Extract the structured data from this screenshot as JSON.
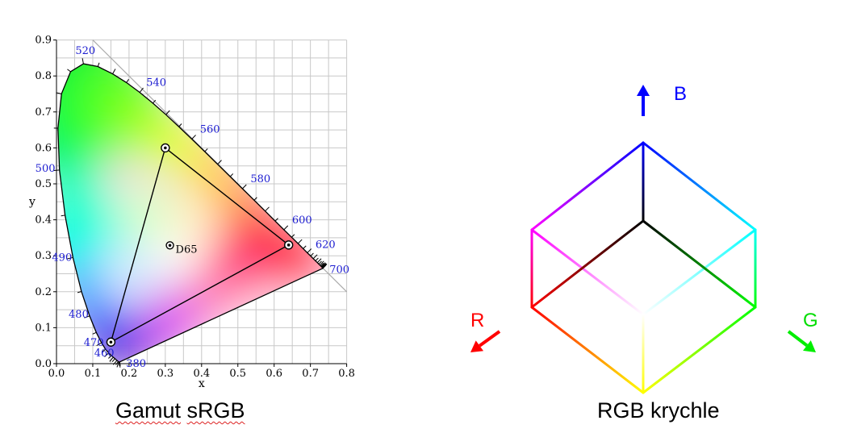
{
  "chromaticity_diagram": {
    "x_axis_label": "x",
    "y_axis_label": "y",
    "x_ticks": [
      "0.0",
      "0.1",
      "0.2",
      "0.3",
      "0.4",
      "0.5",
      "0.6",
      "0.7",
      "0.8"
    ],
    "y_ticks": [
      "0.0",
      "0.1",
      "0.2",
      "0.3",
      "0.4",
      "0.5",
      "0.6",
      "0.7",
      "0.8",
      "0.9"
    ],
    "wavelength_labels": [
      {
        "nm": "380",
        "x": 0.1741,
        "y": 0.005
      },
      {
        "nm": "460",
        "x": 0.144,
        "y": 0.0297
      },
      {
        "nm": "470",
        "x": 0.1241,
        "y": 0.0578
      },
      {
        "nm": "480",
        "x": 0.0913,
        "y": 0.1327
      },
      {
        "nm": "490",
        "x": 0.0454,
        "y": 0.295
      },
      {
        "nm": "500",
        "x": 0.0082,
        "y": 0.5384
      },
      {
        "nm": "520",
        "x": 0.0743,
        "y": 0.8338
      },
      {
        "nm": "540",
        "x": 0.2296,
        "y": 0.7543
      },
      {
        "nm": "560",
        "x": 0.3731,
        "y": 0.6245
      },
      {
        "nm": "580",
        "x": 0.5125,
        "y": 0.4866
      },
      {
        "nm": "600",
        "x": 0.627,
        "y": 0.3725
      },
      {
        "nm": "620",
        "x": 0.6915,
        "y": 0.3083
      },
      {
        "nm": "700",
        "x": 0.7347,
        "y": 0.2653
      }
    ],
    "spectral_locus": [
      [
        0.1741,
        0.005
      ],
      [
        0.1738,
        0.0049
      ],
      [
        0.1736,
        0.0049
      ],
      [
        0.173,
        0.0048
      ],
      [
        0.1721,
        0.0048
      ],
      [
        0.1703,
        0.0058
      ],
      [
        0.1666,
        0.0089
      ],
      [
        0.1611,
        0.0138
      ],
      [
        0.1566,
        0.0177
      ],
      [
        0.151,
        0.0227
      ],
      [
        0.144,
        0.0297
      ],
      [
        0.1355,
        0.0399
      ],
      [
        0.1241,
        0.0578
      ],
      [
        0.1096,
        0.0868
      ],
      [
        0.0913,
        0.1327
      ],
      [
        0.0687,
        0.2007
      ],
      [
        0.0454,
        0.295
      ],
      [
        0.0235,
        0.4127
      ],
      [
        0.0082,
        0.5384
      ],
      [
        0.0039,
        0.6548
      ],
      [
        0.0139,
        0.7502
      ],
      [
        0.0389,
        0.812
      ],
      [
        0.0743,
        0.8338
      ],
      [
        0.1142,
        0.8262
      ],
      [
        0.1547,
        0.8059
      ],
      [
        0.1929,
        0.7816
      ],
      [
        0.2296,
        0.7543
      ],
      [
        0.2658,
        0.7243
      ],
      [
        0.3016,
        0.6923
      ],
      [
        0.3373,
        0.6589
      ],
      [
        0.3731,
        0.6245
      ],
      [
        0.4087,
        0.5896
      ],
      [
        0.4441,
        0.5547
      ],
      [
        0.4788,
        0.5202
      ],
      [
        0.5125,
        0.4866
      ],
      [
        0.5448,
        0.4544
      ],
      [
        0.5752,
        0.4242
      ],
      [
        0.6029,
        0.3965
      ],
      [
        0.627,
        0.3725
      ],
      [
        0.6482,
        0.3514
      ],
      [
        0.6658,
        0.334
      ],
      [
        0.6801,
        0.3197
      ],
      [
        0.6915,
        0.3083
      ],
      [
        0.7006,
        0.2993
      ],
      [
        0.7079,
        0.292
      ],
      [
        0.714,
        0.2859
      ],
      [
        0.719,
        0.2809
      ],
      [
        0.723,
        0.277
      ],
      [
        0.726,
        0.274
      ],
      [
        0.7283,
        0.2717
      ],
      [
        0.73,
        0.27
      ],
      [
        0.7311,
        0.2689
      ],
      [
        0.732,
        0.268
      ],
      [
        0.7327,
        0.2673
      ],
      [
        0.7334,
        0.2666
      ],
      [
        0.734,
        0.266
      ],
      [
        0.7344,
        0.2656
      ],
      [
        0.7346,
        0.2654
      ],
      [
        0.7347,
        0.2653
      ]
    ],
    "gamut_red": [
      0.64,
      0.33
    ],
    "gamut_green": [
      0.3,
      0.6
    ],
    "gamut_blue": [
      0.15,
      0.06
    ],
    "white_point": [
      0.3127,
      0.329
    ],
    "white_point_label": "D65"
  },
  "rgb_cube": {
    "axis_labels": {
      "r": "R",
      "g": "G",
      "b": "B"
    },
    "colors": {
      "black": "#000000",
      "red": "#ff0000",
      "green": "#00ff00",
      "blue": "#0000ff",
      "yellow": "#ffff00",
      "magenta": "#ff00ff",
      "cyan": "#00ffff",
      "white": "#ffffff"
    }
  },
  "captions": {
    "left": "Gamut sRGB",
    "right": "RGB krychle"
  }
}
